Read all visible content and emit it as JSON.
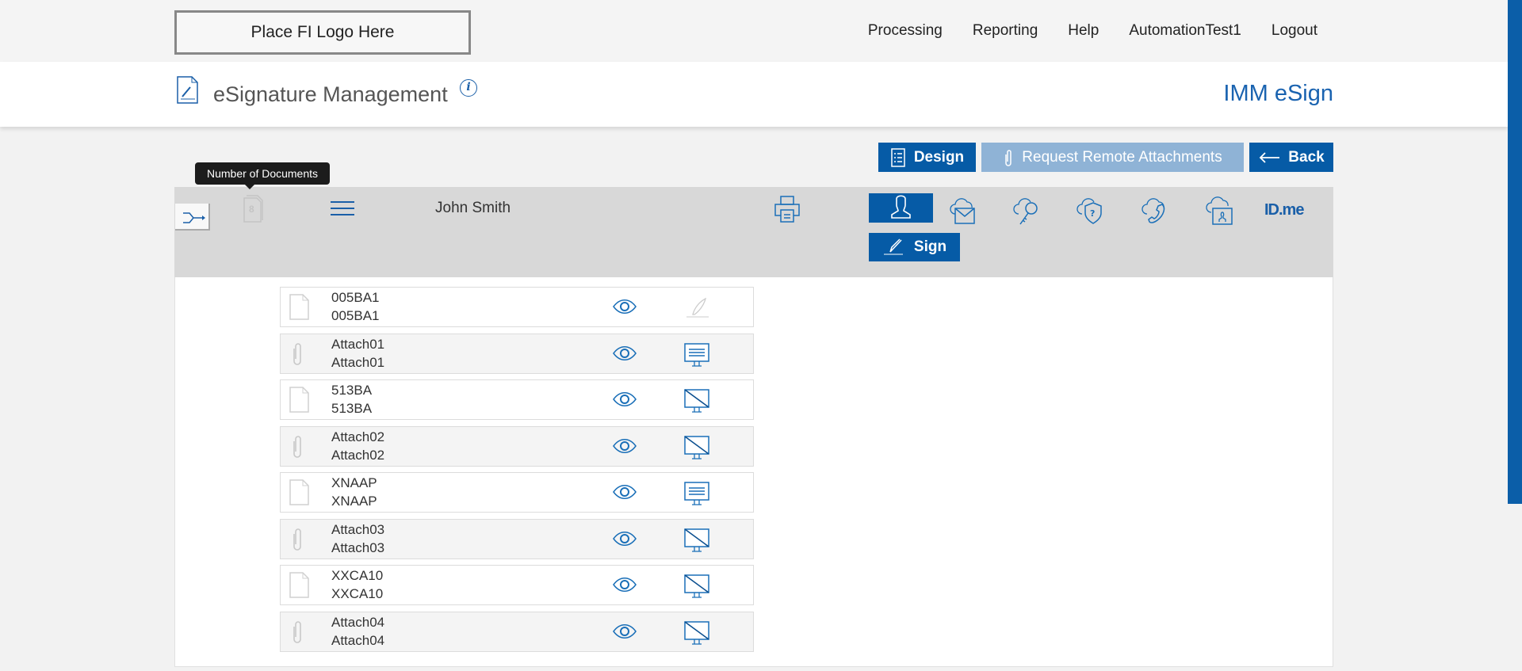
{
  "header": {
    "logo": "Place FI Logo Here",
    "nav": [
      "Processing",
      "Reporting",
      "Help",
      "AutomationTest1",
      "Logout"
    ]
  },
  "page": {
    "title": "eSignature Management",
    "brand": "IMM eSign"
  },
  "actions": {
    "design": "Design",
    "request": "Request Remote Attachments",
    "back": "Back"
  },
  "tooltip": "Number of Documents",
  "toolbar": {
    "doc_count": "8",
    "signer": "John Smith",
    "sign": "Sign",
    "idme": "ID.me",
    "auth_methods": [
      "user-icon",
      "cloud-email-icon",
      "cloud-key-icon",
      "cloud-shield-question-icon",
      "cloud-phone-icon",
      "cloud-id-card-icon",
      "idme-logo"
    ]
  },
  "colors": {
    "primary": "#065ba6",
    "disabled": "#8fb3d6"
  },
  "documents": [
    {
      "type": "document",
      "line1": "005BA1",
      "line2": "005BA1",
      "action": "sign-disabled"
    },
    {
      "type": "attachment",
      "line1": "Attach01",
      "line2": "Attach01",
      "action": "monitor-lines"
    },
    {
      "type": "document",
      "line1": "513BA",
      "line2": "513BA",
      "action": "monitor-slash"
    },
    {
      "type": "attachment",
      "line1": "Attach02",
      "line2": "Attach02",
      "action": "monitor-slash"
    },
    {
      "type": "document",
      "line1": "XNAAP",
      "line2": "XNAAP",
      "action": "monitor-lines"
    },
    {
      "type": "attachment",
      "line1": "Attach03",
      "line2": "Attach03",
      "action": "monitor-slash"
    },
    {
      "type": "document",
      "line1": "XXCA10",
      "line2": "XXCA10",
      "action": "monitor-slash"
    },
    {
      "type": "attachment",
      "line1": "Attach04",
      "line2": "Attach04",
      "action": "monitor-slash"
    }
  ]
}
